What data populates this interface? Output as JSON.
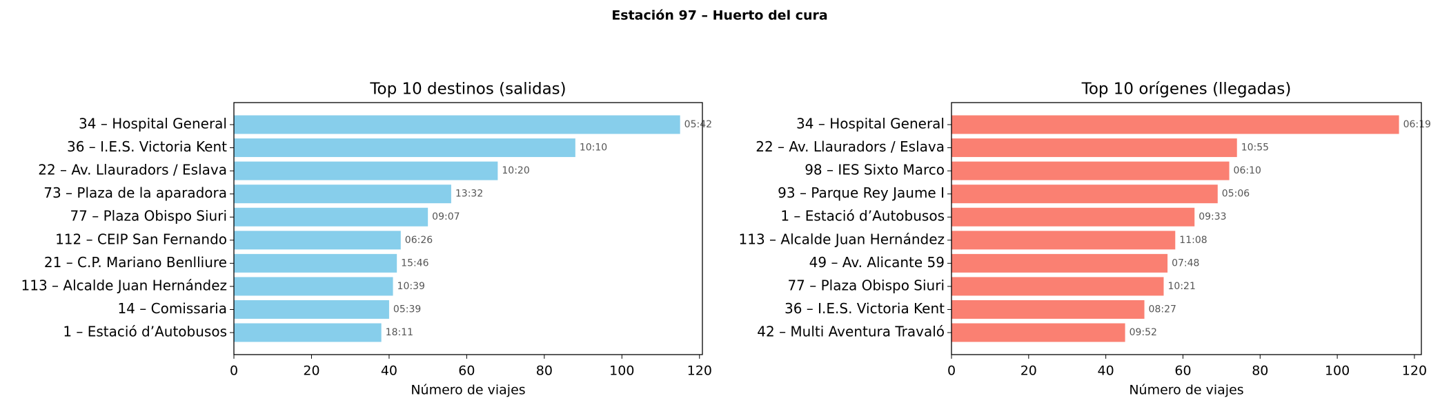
{
  "title": "Estación 97 – Huerto del cura",
  "chart_data": [
    {
      "type": "barh",
      "title": "Top 10 destinos (salidas)",
      "x_label": "Número de viajes",
      "categories": [
        "34 – Hospital General",
        "36 – I.E.S. Victoria Kent",
        "22 – Av. Llauradors / Eslava",
        "73 – Plaza de la aparadora",
        "77 – Plaza Obispo Siuri",
        "112 – CEIP San Fernando",
        "21 – C.P. Mariano Benlliure",
        "113 – Alcalde Juan Hernández",
        "14 – Comissaria",
        "1 – Estació d’Autobusos"
      ],
      "values": [
        115,
        88,
        68,
        56,
        50,
        43,
        42,
        41,
        40,
        38
      ],
      "bar_labels": [
        "05:42",
        "10:10",
        "10:20",
        "13:32",
        "09:07",
        "06:26",
        "15:46",
        "10:39",
        "05:39",
        "18:11"
      ],
      "color": "#87ceeb",
      "xlim": [
        0,
        120.75
      ],
      "xticks": [
        0,
        20,
        40,
        60,
        80,
        100,
        120
      ]
    },
    {
      "type": "barh",
      "title": "Top 10 orígenes (llegadas)",
      "x_label": "Número de viajes",
      "categories": [
        "34 – Hospital General",
        "22 – Av. Llauradors / Eslava",
        "98 – IES Sixto Marco",
        "93 – Parque Rey Jaume I",
        "1 – Estació d’Autobusos",
        "113 – Alcalde Juan Hernández",
        "49 – Av. Alicante 59",
        "77 – Plaza Obispo Siuri",
        "36 – I.E.S. Victoria Kent",
        "42 – Multi Aventura Travaló"
      ],
      "values": [
        116,
        74,
        72,
        69,
        63,
        58,
        56,
        55,
        50,
        45
      ],
      "bar_labels": [
        "06:19",
        "10:55",
        "06:10",
        "05:06",
        "09:33",
        "11:08",
        "07:48",
        "10:21",
        "08:27",
        "09:52"
      ],
      "color": "#fa8072",
      "xlim": [
        0,
        121.8
      ],
      "xticks": [
        0,
        20,
        40,
        60,
        80,
        100,
        120
      ]
    }
  ]
}
